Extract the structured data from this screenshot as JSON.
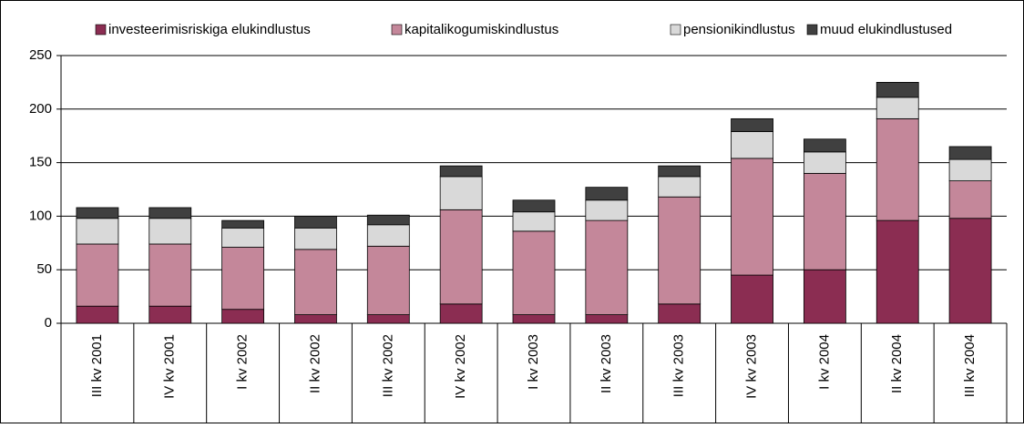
{
  "chart_data": {
    "type": "stacked_bar",
    "categories": [
      "III kv 2001",
      "IV kv 2001",
      "I kv 2002",
      "II kv 2002",
      "III kv 2002",
      "IV kv 2002",
      "I kv 2003",
      "II kv 2003",
      "III kv 2003",
      "IV kv 2003",
      "I kv 2004",
      "II kv 2004",
      "III kv 2004"
    ],
    "series": [
      {
        "name": "investeerimisriskiga elukindlustus",
        "color": "#8b2d52",
        "values": [
          16,
          16,
          13,
          8,
          8,
          18,
          8,
          8,
          18,
          45,
          50,
          96,
          98
        ]
      },
      {
        "name": "kapitalikogumiskindlustus",
        "color": "#c4879a",
        "values": [
          58,
          58,
          58,
          61,
          64,
          88,
          78,
          88,
          100,
          109,
          90,
          95,
          35
        ]
      },
      {
        "name": "pensionikindlustus",
        "color": "#d9d9d9",
        "values": [
          24,
          24,
          18,
          20,
          20,
          31,
          18,
          19,
          19,
          25,
          20,
          20,
          20
        ]
      },
      {
        "name": "muud elukindlustused",
        "color": "#404040",
        "values": [
          10,
          10,
          7,
          11,
          9,
          10,
          11,
          12,
          10,
          12,
          12,
          14,
          12
        ]
      }
    ],
    "ylim": [
      0,
      250
    ],
    "yticks": [
      0,
      50,
      100,
      150,
      200,
      250
    ],
    "grid": true,
    "legend": "top"
  }
}
